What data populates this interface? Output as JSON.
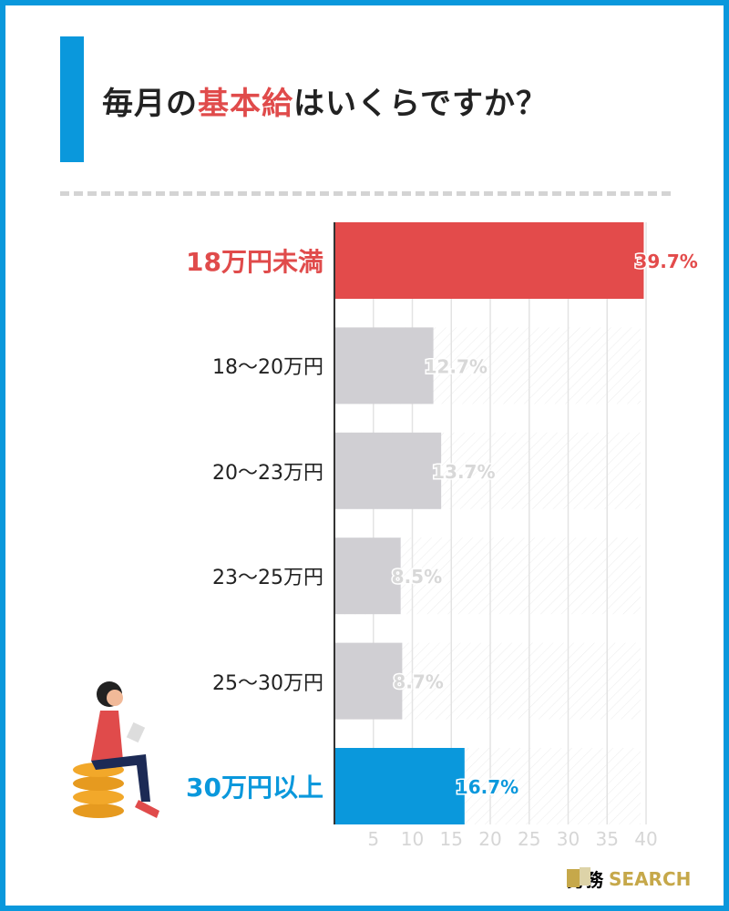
{
  "title": {
    "pre": "毎月の",
    "highlight": "基本給",
    "post": "はいくらですか？"
  },
  "logo": {
    "jp": "労務",
    "en": "SEARCH"
  },
  "colors": {
    "accent_red": "#e34b4b",
    "accent_blue": "#0a98dc",
    "neutral": "#d0cfd3",
    "frame": "#0a98dc"
  },
  "chart_data": {
    "type": "bar",
    "orientation": "horizontal",
    "categories": [
      "18万円未満",
      "18〜20万円",
      "20〜23万円",
      "23〜25万円",
      "25〜30万円",
      "30万円以上"
    ],
    "values": [
      39.7,
      12.7,
      13.7,
      8.5,
      8.7,
      16.7
    ],
    "data_labels": [
      "39.7%",
      "12.7%",
      "13.7%",
      "8.5%",
      "8.7%",
      "16.7%"
    ],
    "bar_colors": [
      "#e34b4b",
      "#d0cfd3",
      "#d0cfd3",
      "#d0cfd3",
      "#d0cfd3",
      "#0a98dc"
    ],
    "label_colors": [
      "#e34b4b",
      "#d8d8d8",
      "#d8d8d8",
      "#d8d8d8",
      "#d8d8d8",
      "#0a98dc"
    ],
    "xticks": [
      "5",
      "10",
      "15",
      "20",
      "25",
      "30",
      "35",
      "40"
    ],
    "xlim": [
      0,
      40
    ],
    "grid": true,
    "unit": "%"
  }
}
